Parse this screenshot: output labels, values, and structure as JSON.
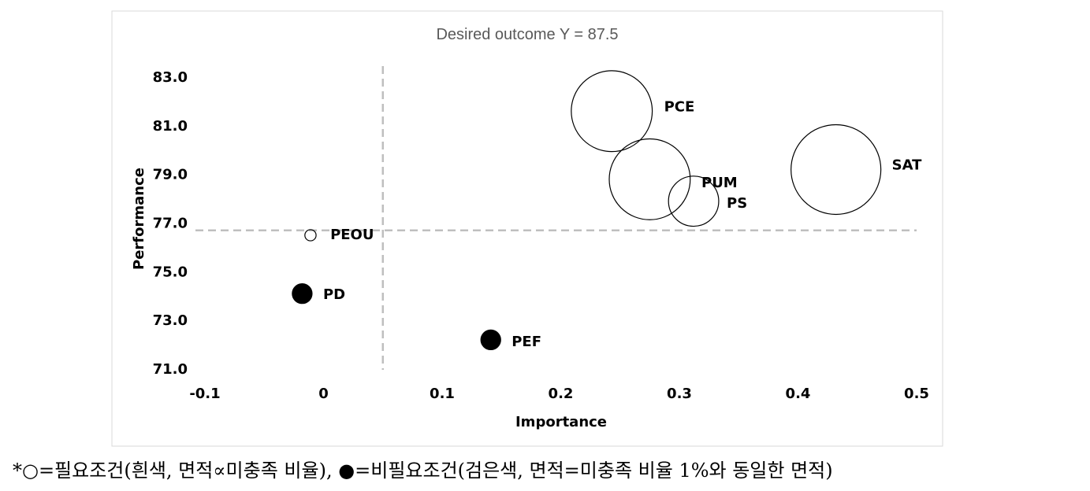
{
  "chart_data": {
    "type": "scatter",
    "subtype": "bubble",
    "title": "Desired outcome Y = 87.5",
    "xlabel": "Importance",
    "ylabel": "Performance",
    "xlim": [
      -0.1,
      0.5
    ],
    "ylim": [
      71.0,
      83.0
    ],
    "x_ticks": [
      "-0.1",
      "0",
      "0.1",
      "0.2",
      "0.3",
      "0.4",
      "0.5"
    ],
    "y_ticks": [
      "71.0",
      "73.0",
      "75.0",
      "77.0",
      "79.0",
      "81.0",
      "83.0"
    ],
    "grid": false,
    "reference_lines": {
      "x": 0.05,
      "y": 76.7
    },
    "points": [
      {
        "label": "PCE",
        "x": 0.243,
        "y": 81.6,
        "fill": "white",
        "size": 0.52
      },
      {
        "label": "PUM",
        "x": 0.275,
        "y": 78.8,
        "fill": "white",
        "size": 0.52
      },
      {
        "label": "PS",
        "x": 0.312,
        "y": 77.9,
        "fill": "white",
        "size": 0.2
      },
      {
        "label": "SAT",
        "x": 0.432,
        "y": 79.2,
        "fill": "white",
        "size": 0.64
      },
      {
        "label": "PEOU",
        "x": -0.011,
        "y": 76.5,
        "fill": "white",
        "size": 0.01
      },
      {
        "label": "PD",
        "x": -0.018,
        "y": 74.1,
        "fill": "black",
        "size": 0.031
      },
      {
        "label": "PEF",
        "x": 0.141,
        "y": 72.2,
        "fill": "black",
        "size": 0.031
      }
    ]
  },
  "footnote": "*○=필요조건(흰색, 면적∝미충족 비율), ●=비필요조건(검은색, 면적=미충족 비율 1%와 동일한 면적)"
}
